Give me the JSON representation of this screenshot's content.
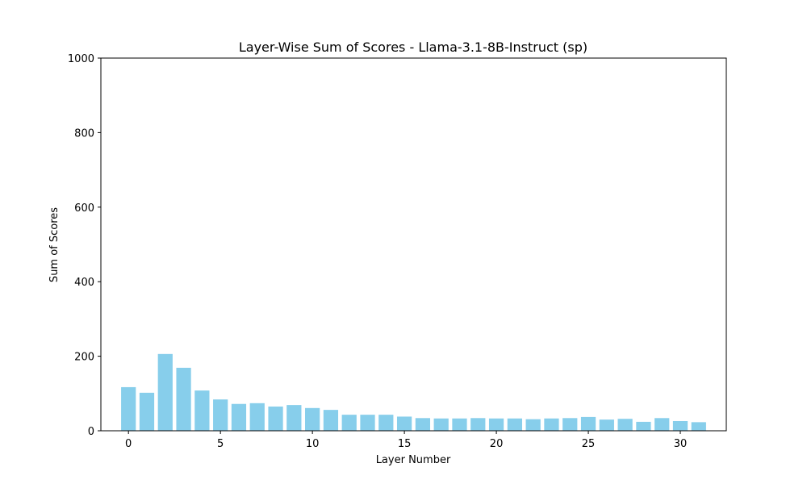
{
  "chart_data": {
    "type": "bar",
    "title": "Layer-Wise Sum of Scores - Llama-3.1-8B-Instruct (sp)",
    "xlabel": "Layer Number",
    "ylabel": "Sum of Scores",
    "x": [
      0,
      1,
      2,
      3,
      4,
      5,
      6,
      7,
      8,
      9,
      10,
      11,
      12,
      13,
      14,
      15,
      16,
      17,
      18,
      19,
      20,
      21,
      22,
      23,
      24,
      25,
      26,
      27,
      28,
      29,
      30,
      31
    ],
    "values": [
      117,
      102,
      206,
      169,
      108,
      84,
      72,
      74,
      65,
      69,
      61,
      56,
      43,
      43,
      43,
      38,
      34,
      33,
      33,
      34,
      33,
      33,
      31,
      33,
      34,
      37,
      30,
      32,
      24,
      34,
      26,
      23
    ],
    "xlim": [
      -1.5,
      32.5
    ],
    "ylim": [
      0,
      1000
    ],
    "xticks": [
      0,
      5,
      10,
      15,
      20,
      25,
      30
    ],
    "yticks": [
      0,
      200,
      400,
      600,
      800,
      1000
    ],
    "bar_color": "#87CEEB",
    "grid": false,
    "legend": "none"
  }
}
